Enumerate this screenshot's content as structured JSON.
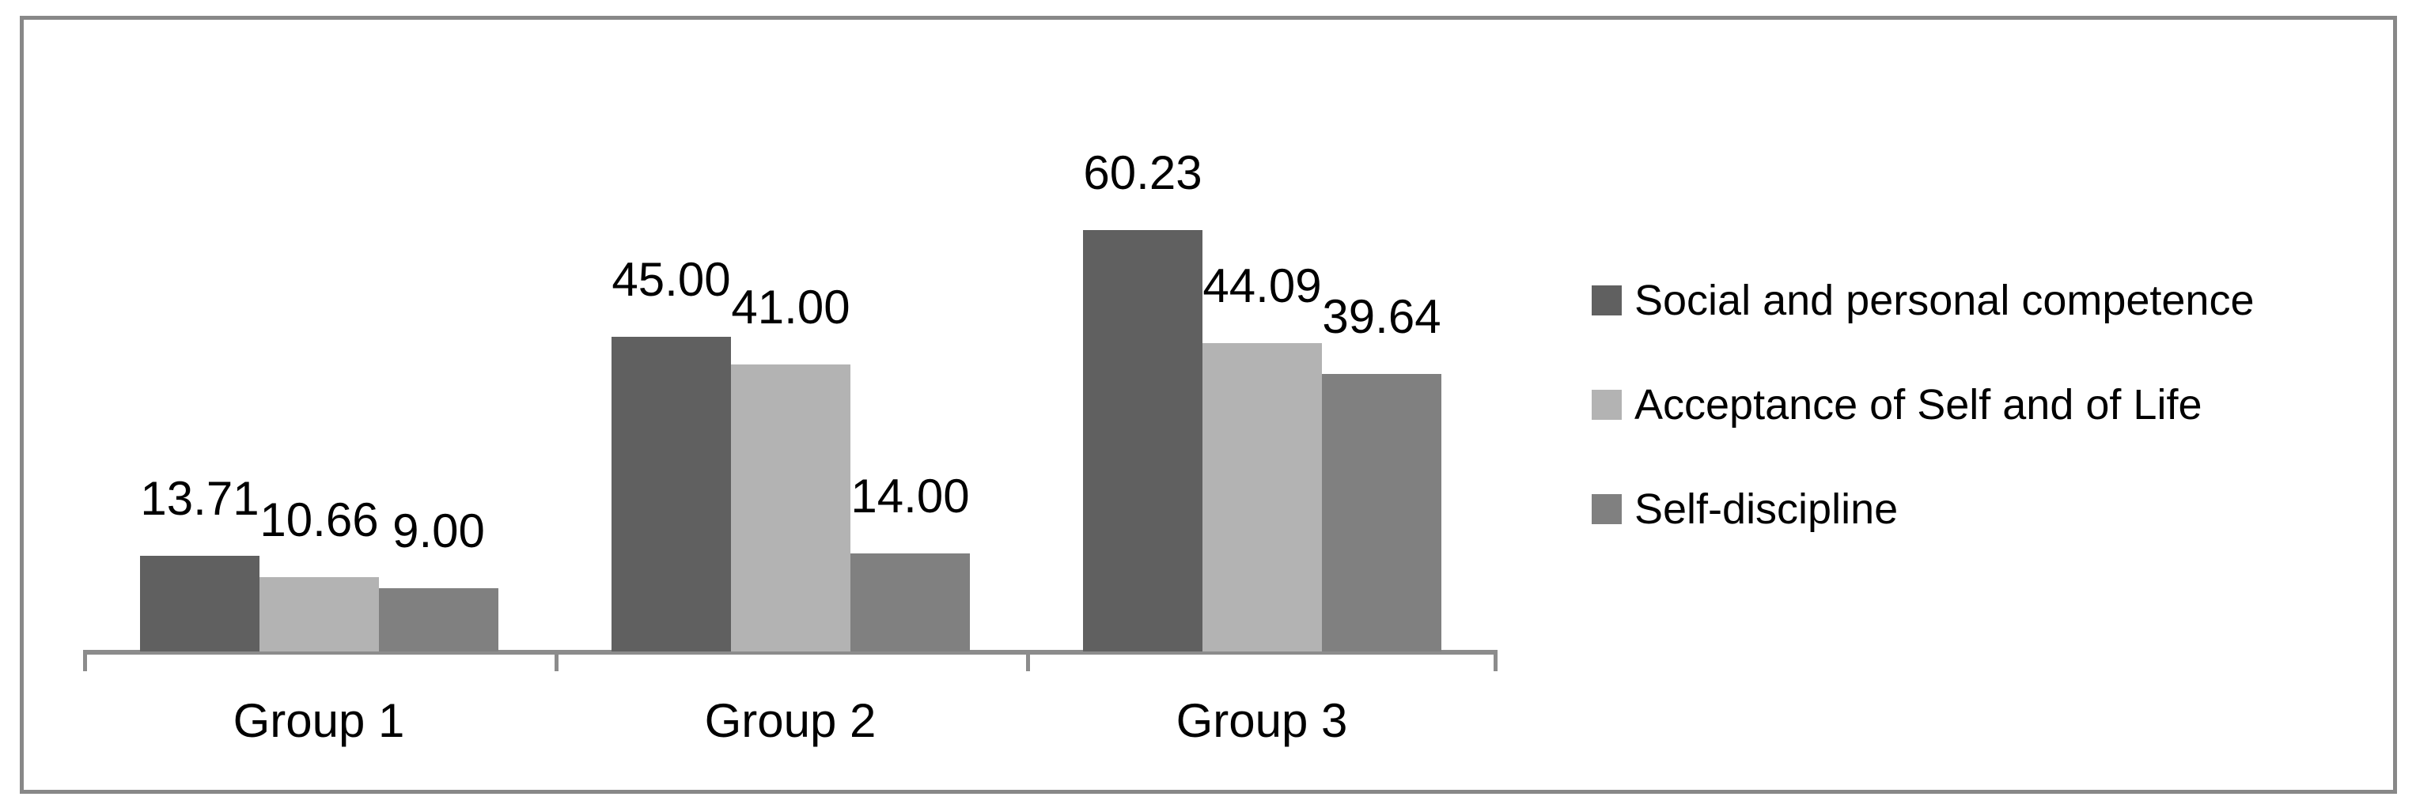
{
  "chart_data": {
    "type": "bar",
    "title": "",
    "xlabel": "",
    "ylabel": "",
    "categories": [
      "Group 1",
      "Group 2",
      "Group 3"
    ],
    "series": [
      {
        "name": "Social and personal competence",
        "color": "#606060",
        "values": [
          13.71,
          45.0,
          60.23
        ],
        "labels": [
          "13.71",
          "45.00",
          "60.23"
        ]
      },
      {
        "name": "Acceptance of Self and of Life",
        "color": "#B3B3B3",
        "values": [
          10.66,
          41.0,
          44.09
        ],
        "labels": [
          "10.66",
          "41.00",
          "44.09"
        ]
      },
      {
        "name": "Self-discipline",
        "color": "#808080",
        "values": [
          9.0,
          14.0,
          39.64
        ],
        "labels": [
          "9.00",
          "14.00",
          "39.64"
        ]
      }
    ],
    "ylim": [
      0,
      65
    ],
    "grid": false,
    "y_axis_visible": false,
    "data_labels": "outside-end",
    "legend_position": "right",
    "axis_color": "#8C8C8C",
    "tick_color": "#8C8C8C",
    "text_color": "#000000",
    "frame_border_color": "#888888",
    "background_color": "#FFFFFF"
  }
}
